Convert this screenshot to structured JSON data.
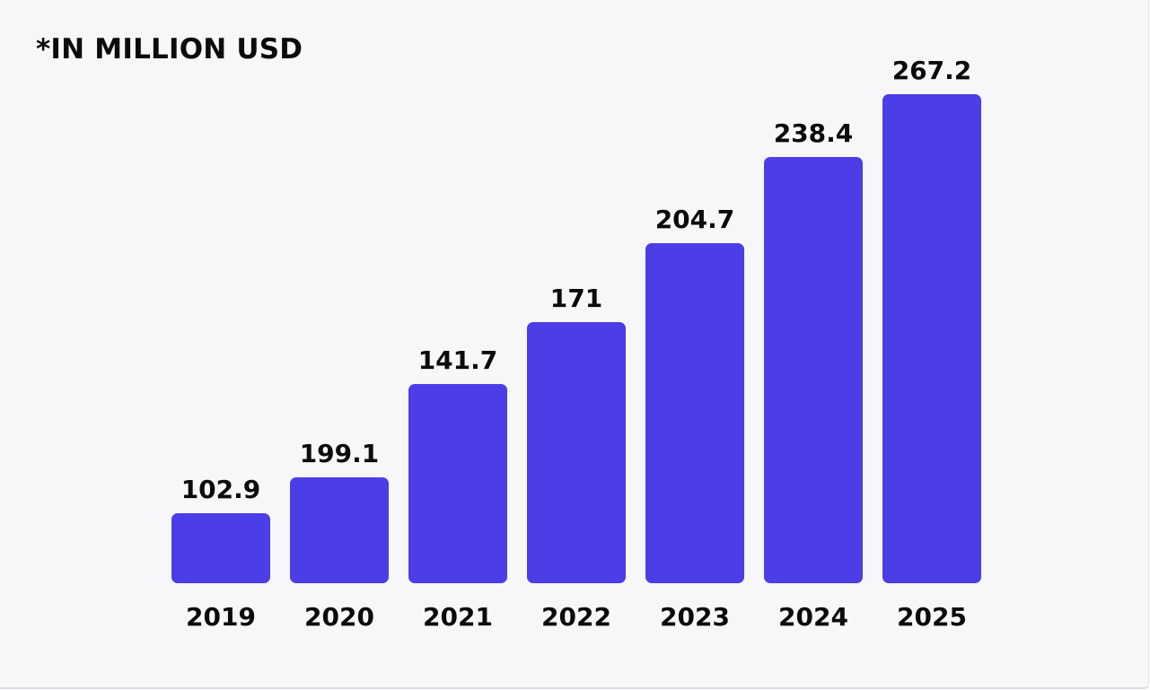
{
  "note": "*IN MILLION USD",
  "chart_data": {
    "type": "bar",
    "title": "",
    "xlabel": "",
    "ylabel": "",
    "categories": [
      "2019",
      "2020",
      "2021",
      "2022",
      "2023",
      "2024",
      "2025"
    ],
    "values": [
      102.9,
      199.1,
      141.7,
      171,
      204.7,
      238.4,
      267.2
    ],
    "value_labels": [
      "102.9",
      "199.1",
      "141.7",
      "171",
      "204.7",
      "238.4",
      "267.2"
    ],
    "bar_color": "#4b3ee6",
    "grid": false,
    "legend": "none"
  }
}
